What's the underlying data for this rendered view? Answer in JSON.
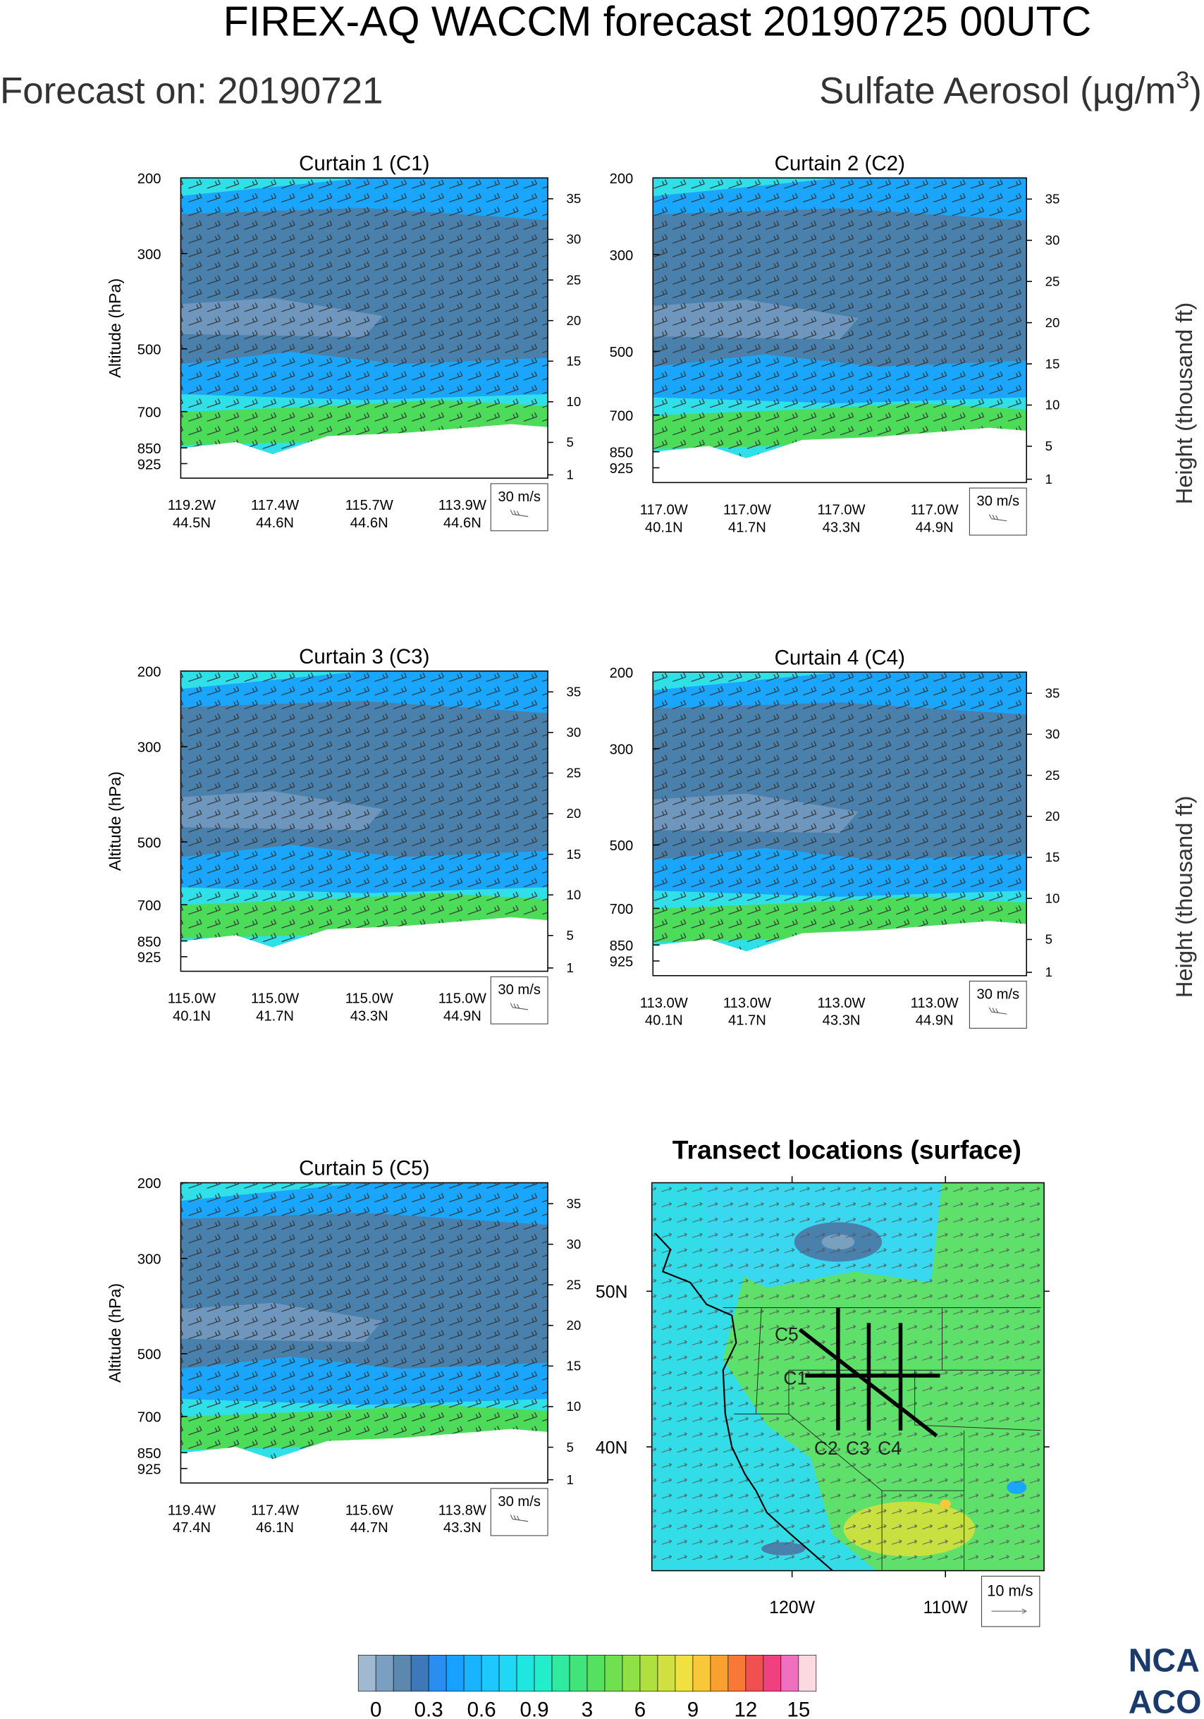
{
  "header": {
    "title": "FIREX-AQ WACCM forecast 20190725 00UTC",
    "forecast_date": "Forecast on: 20190721",
    "variable": "Sulfate Aerosol (µg/m",
    "variable_exponent": "3",
    "variable_close": ")"
  },
  "curtains": [
    {
      "title": "Curtain 1 (C1)",
      "y_label": "Altitude (hPa)",
      "pressure_ticks": [
        200,
        300,
        500,
        700,
        850,
        925
      ],
      "height_ticks": [
        35,
        30,
        25,
        20,
        15,
        10,
        5,
        1
      ],
      "x_ticks": [
        [
          "119.2W",
          "44.5N"
        ],
        [
          "117.4W",
          "44.6N"
        ],
        [
          "115.7W",
          "44.6N"
        ],
        [
          "113.9W",
          "44.6N"
        ]
      ],
      "wind_key": "30 m/s"
    },
    {
      "title": "Curtain 2 (C2)",
      "height_label": "Height (thousand ft)",
      "pressure_ticks": [
        200,
        300,
        500,
        700,
        850,
        925
      ],
      "height_ticks": [
        35,
        30,
        25,
        20,
        15,
        10,
        5,
        1
      ],
      "x_ticks": [
        [
          "117.0W",
          "40.1N"
        ],
        [
          "117.0W",
          "41.7N"
        ],
        [
          "117.0W",
          "43.3N"
        ],
        [
          "117.0W",
          "44.9N"
        ]
      ],
      "wind_key": "30 m/s"
    },
    {
      "title": "Curtain 3 (C3)",
      "y_label": "Altitude (hPa)",
      "pressure_ticks": [
        200,
        300,
        500,
        700,
        850,
        925
      ],
      "height_ticks": [
        35,
        30,
        25,
        20,
        15,
        10,
        5,
        1
      ],
      "x_ticks": [
        [
          "115.0W",
          "40.1N"
        ],
        [
          "115.0W",
          "41.7N"
        ],
        [
          "115.0W",
          "43.3N"
        ],
        [
          "115.0W",
          "44.9N"
        ]
      ],
      "wind_key": "30 m/s"
    },
    {
      "title": "Curtain 4 (C4)",
      "height_label": "Height (thousand ft)",
      "pressure_ticks": [
        200,
        300,
        500,
        700,
        850,
        925
      ],
      "height_ticks": [
        35,
        30,
        25,
        20,
        15,
        10,
        5,
        1
      ],
      "x_ticks": [
        [
          "113.0W",
          "40.1N"
        ],
        [
          "113.0W",
          "41.7N"
        ],
        [
          "113.0W",
          "43.3N"
        ],
        [
          "113.0W",
          "44.9N"
        ]
      ],
      "wind_key": "30 m/s"
    },
    {
      "title": "Curtain 5 (C5)",
      "y_label": "Altitude (hPa)",
      "pressure_ticks": [
        200,
        300,
        500,
        700,
        850,
        925
      ],
      "height_ticks": [
        35,
        30,
        25,
        20,
        15,
        10,
        5,
        1
      ],
      "x_ticks": [
        [
          "119.4W",
          "47.4N"
        ],
        [
          "117.4W",
          "46.1N"
        ],
        [
          "115.6W",
          "44.7N"
        ],
        [
          "113.8W",
          "43.3N"
        ]
      ],
      "wind_key": "30 m/s"
    }
  ],
  "map": {
    "title": "Transect locations (surface)",
    "lat_ticks": [
      "50N",
      "40N"
    ],
    "lon_ticks": [
      "120W",
      "110W"
    ],
    "transects": [
      "C1",
      "C2",
      "C3",
      "C4",
      "C5"
    ],
    "wind_key": "10 m/s"
  },
  "colorbar": {
    "labels": [
      "0",
      "0.3",
      "0.6",
      "0.9",
      "3",
      "6",
      "9",
      "12",
      "15"
    ]
  },
  "logo": [
    "NCA",
    "ACO"
  ]
}
